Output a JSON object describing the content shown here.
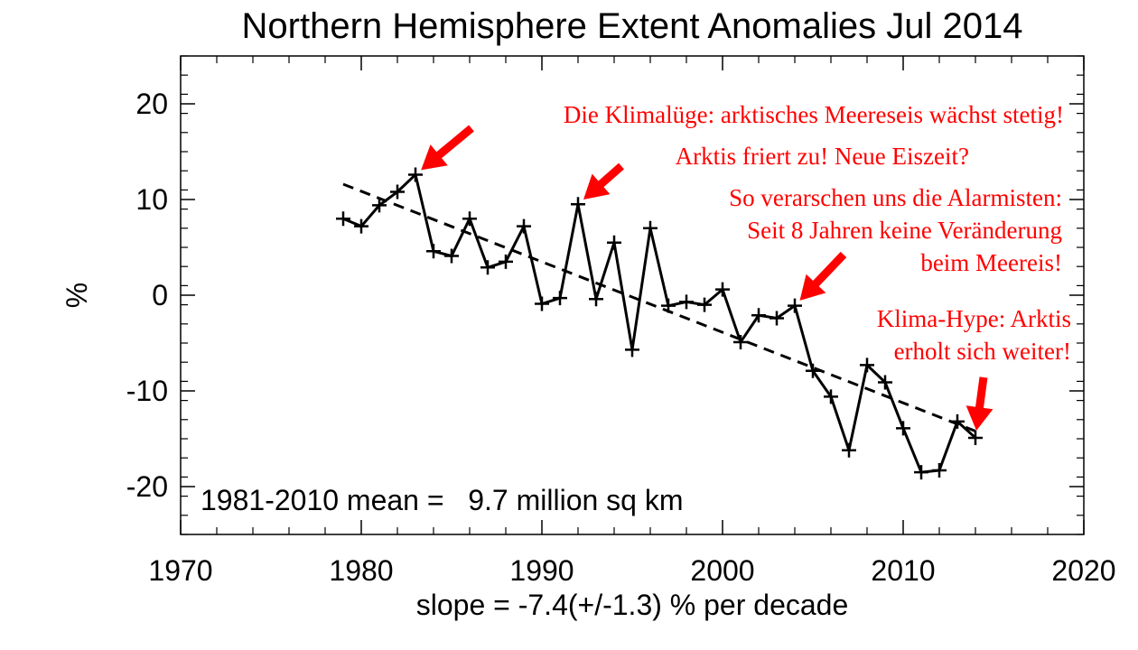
{
  "chart_data": {
    "type": "line",
    "title": "Northern Hemisphere Extent Anomalies Jul 2014",
    "xlabel": "slope =  -7.4(+/-1.3) % per decade",
    "ylabel": "%",
    "note": "1981-2010 mean =   9.7 million sq km",
    "xlim": [
      1970,
      2020
    ],
    "ylim": [
      -25,
      25
    ],
    "x_ticks": [
      "1970",
      "1980",
      "1990",
      "2000",
      "2010",
      "2020"
    ],
    "y_ticks": [
      "20",
      "10",
      "0",
      "-10",
      "-20"
    ],
    "grid": false,
    "series": [
      {
        "x": [
          1979,
          1980,
          1981,
          1982,
          1983,
          1984,
          1985,
          1986,
          1987,
          1988,
          1989,
          1990,
          1991,
          1992,
          1993,
          1994,
          1995,
          1996,
          1997,
          1998,
          1999,
          2000,
          2001,
          2002,
          2003,
          2004,
          2005,
          2006,
          2007,
          2008,
          2009,
          2010,
          2011,
          2012,
          2013,
          2014
        ],
        "values": [
          8.0,
          7.2,
          9.4,
          10.8,
          12.6,
          4.6,
          4.1,
          8.0,
          2.9,
          3.5,
          7.2,
          -0.9,
          -0.3,
          9.5,
          -0.4,
          5.5,
          -5.7,
          7.0,
          -1.1,
          -0.7,
          -1.0,
          0.6,
          -4.9,
          -2.1,
          -2.4,
          -1.1,
          -7.9,
          -10.6,
          -16.2,
          -7.3,
          -9.1,
          -13.9,
          -18.5,
          -18.3,
          -13.2,
          -14.9
        ],
        "color": "#000000",
        "marker": "+"
      }
    ],
    "trend": {
      "x": [
        1979,
        2014
      ],
      "values": [
        11.6,
        -14.2
      ],
      "style": "dashed",
      "color": "#000000"
    },
    "annotations": [
      {
        "lines": [
          "Die Klimalüge: arktisches Meereseis wächst stetig!"
        ],
        "color": "#ff0000",
        "points_to": {
          "x": 1983,
          "y": 12.6
        }
      },
      {
        "lines": [
          "Arktis friert zu! Neue Eiszeit?"
        ],
        "color": "#ff0000",
        "points_to": {
          "x": 1992,
          "y": 9.5
        }
      },
      {
        "lines": [
          "So verarschen uns die Alarmisten:",
          "Seit 8 Jahren keine Veränderung",
          "beim Meereis!"
        ],
        "color": "#ff0000",
        "points_to": {
          "x": 2004,
          "y": -1.1
        }
      },
      {
        "lines": [
          "Klima-Hype: Arktis",
          "erholt sich weiter!"
        ],
        "color": "#ff0000",
        "points_to": {
          "x": 2014,
          "y": -14.9
        }
      }
    ]
  }
}
